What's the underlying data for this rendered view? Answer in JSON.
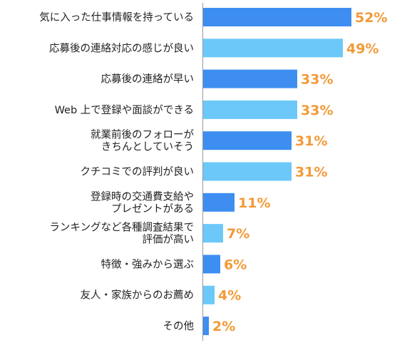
{
  "chart_data": {
    "type": "bar",
    "orientation": "horizontal",
    "categories": [
      [
        "気に入った仕事情報を持っている"
      ],
      [
        "応募後の連絡対応の感じが良い"
      ],
      [
        "応募後の連絡が早い"
      ],
      [
        "Web 上で登録や面談ができる"
      ],
      [
        "就業前後のフォローが",
        "きちんとしていそう"
      ],
      [
        "クチコミでの評判が良い"
      ],
      [
        "登録時の交通費支給や",
        "プレゼントがある"
      ],
      [
        "ランキングなど各種調査結果で",
        "評価が高い"
      ],
      [
        "特徴・強みから選ぶ"
      ],
      [
        "友人・家族からのお薦め"
      ],
      [
        "その他"
      ]
    ],
    "values": [
      52,
      49,
      33,
      33,
      31,
      31,
      11,
      7,
      6,
      4,
      2
    ],
    "value_labels": [
      "52%",
      "49%",
      "33%",
      "33%",
      "31%",
      "31%",
      "11%",
      "7%",
      "6%",
      "4%",
      "2%"
    ],
    "unit": "%",
    "xlim": [
      0,
      100
    ],
    "grid": false,
    "legend": "none",
    "colors": {
      "bar_odd": "#3d8ef0",
      "bar_even": "#6cc8f9",
      "value_label": "#f29a38",
      "category_label": "#222222",
      "axis_line": "#999999"
    }
  }
}
